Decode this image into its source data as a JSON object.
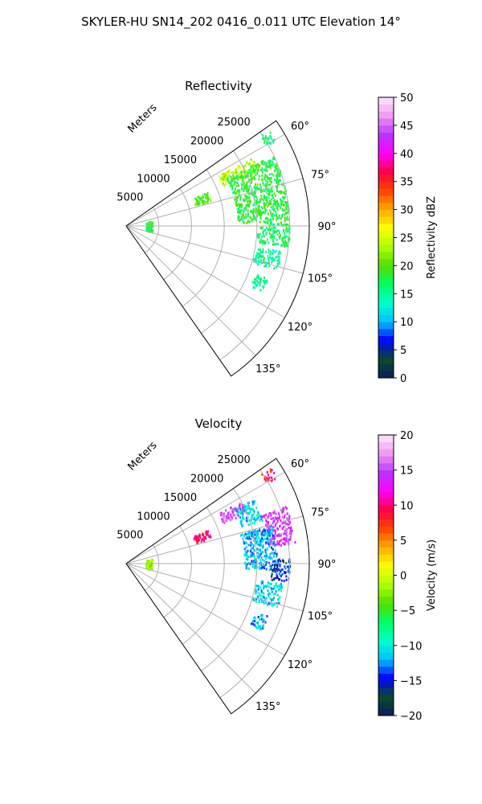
{
  "suptitle": "SKYLER-HU  SN14_202  0416_0.011 UTC Elevation 14°",
  "chart_data": [
    {
      "type": "polar-sector",
      "title": "Reflectivity",
      "radial_unit_label": "Meters",
      "theta_range_deg": [
        55,
        145
      ],
      "theta_ticks_deg": [
        60,
        75,
        90,
        105,
        120,
        135
      ],
      "theta_tick_labels": [
        "60°",
        "75°",
        "90°",
        "105°",
        "120°",
        "135°"
      ],
      "r_range": [
        0,
        28000
      ],
      "r_ticks": [
        5000,
        10000,
        15000,
        20000,
        25000
      ],
      "r_tick_labels": [
        "5000",
        "10000",
        "15000",
        "20000",
        "25000"
      ],
      "grid": true,
      "colorbar": {
        "label": "Reflectivity dBZ",
        "min": 0,
        "max": 50,
        "ticks": [
          0,
          5,
          10,
          15,
          20,
          25,
          30,
          35,
          40,
          45,
          50
        ],
        "tick_labels": [
          "0",
          "5",
          "10",
          "15",
          "20",
          "25",
          "30",
          "35",
          "40",
          "45",
          "50"
        ],
        "colormap_stops": [
          "#0d1a5c",
          "#0a4a2a",
          "#0000ff",
          "#00bfff",
          "#00ffcc",
          "#00ff66",
          "#55dd00",
          "#aaff00",
          "#ffff00",
          "#ffaa00",
          "#ff4400",
          "#ff0044",
          "#ff00ff",
          "#bb33ff",
          "#ee99ee",
          "#ffe6ff"
        ]
      },
      "echo_regions": [
        {
          "az_deg": [
            56,
            60
          ],
          "range_m": [
            24500,
            26500
          ],
          "value": 16
        },
        {
          "az_deg": [
            61,
            67
          ],
          "range_m": [
            16000,
            22000
          ],
          "value": 24
        },
        {
          "az_deg": [
            67,
            73
          ],
          "range_m": [
            11000,
            13500
          ],
          "value": 20
        },
        {
          "az_deg": [
            64,
            88
          ],
          "range_m": [
            17000,
            25000
          ],
          "value": 18
        },
        {
          "az_deg": [
            88,
            97
          ],
          "range_m": [
            20000,
            25000
          ],
          "value": 17
        },
        {
          "az_deg": [
            99,
            106
          ],
          "range_m": [
            20000,
            24000
          ],
          "value": 15
        },
        {
          "az_deg": [
            110,
            116
          ],
          "range_m": [
            21000,
            23000
          ],
          "value": 15
        },
        {
          "az_deg": [
            78,
            102
          ],
          "range_m": [
            3000,
            4000
          ],
          "value": 18
        }
      ]
    },
    {
      "type": "polar-sector",
      "title": "Velocity",
      "radial_unit_label": "Meters",
      "theta_range_deg": [
        55,
        145
      ],
      "theta_ticks_deg": [
        60,
        75,
        90,
        105,
        120,
        135
      ],
      "theta_tick_labels": [
        "60°",
        "75°",
        "90°",
        "105°",
        "120°",
        "135°"
      ],
      "r_range": [
        0,
        28000
      ],
      "r_ticks": [
        5000,
        10000,
        15000,
        20000,
        25000
      ],
      "r_tick_labels": [
        "5000",
        "10000",
        "15000",
        "20000",
        "25000"
      ],
      "grid": true,
      "colorbar": {
        "label": "Velocity (m/s)",
        "min": -20,
        "max": 20,
        "ticks": [
          -20,
          -15,
          -10,
          -5,
          0,
          5,
          10,
          15,
          20
        ],
        "tick_labels": [
          "−20",
          "−15",
          "−10",
          "−5",
          "0",
          "5",
          "10",
          "15",
          "20"
        ],
        "colormap_stops": [
          "#0d1a5c",
          "#0a4a2a",
          "#0000ff",
          "#00bfff",
          "#00ffcc",
          "#00ff66",
          "#55dd00",
          "#aaff00",
          "#ffff00",
          "#ffaa00",
          "#ff4400",
          "#ff0044",
          "#ff00ff",
          "#bb33ff",
          "#ee99ee",
          "#ffe6ff"
        ]
      },
      "echo_regions": [
        {
          "az_deg": [
            56,
            60
          ],
          "range_m": [
            24500,
            26500
          ],
          "value": 9
        },
        {
          "az_deg": [
            61,
            67
          ],
          "range_m": [
            16000,
            20000
          ],
          "value": 15
        },
        {
          "az_deg": [
            67,
            73
          ],
          "range_m": [
            11000,
            13500
          ],
          "value": 10
        },
        {
          "az_deg": [
            63,
            72
          ],
          "range_m": [
            18500,
            22000
          ],
          "value": -11
        },
        {
          "az_deg": [
            70,
            83
          ],
          "range_m": [
            22000,
            26000
          ],
          "value": 14
        },
        {
          "az_deg": [
            75,
            92
          ],
          "range_m": [
            18000,
            23000
          ],
          "value": -12
        },
        {
          "az_deg": [
            88,
            96
          ],
          "range_m": [
            22000,
            25000
          ],
          "value": -15
        },
        {
          "az_deg": [
            97,
            106
          ],
          "range_m": [
            20000,
            24000
          ],
          "value": -11
        },
        {
          "az_deg": [
            110,
            116
          ],
          "range_m": [
            21000,
            23000
          ],
          "value": -12
        },
        {
          "az_deg": [
            78,
            102
          ],
          "range_m": [
            3000,
            4000
          ],
          "value": -2
        }
      ]
    }
  ]
}
